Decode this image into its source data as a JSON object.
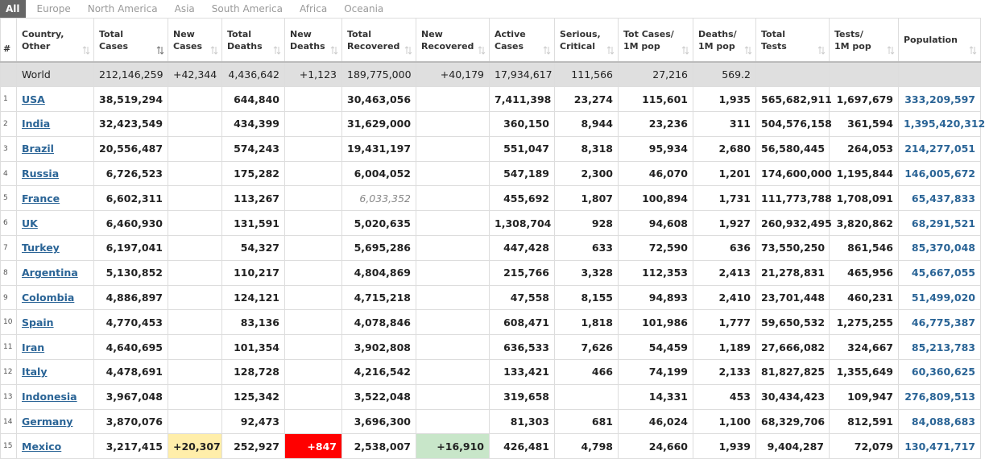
{
  "tabs": [
    "All",
    "Europe",
    "North America",
    "Asia",
    "South America",
    "Africa",
    "Oceania"
  ],
  "table": {
    "headers": [
      [
        "#"
      ],
      [
        "Country,",
        "Other"
      ],
      [
        "Total",
        "Cases"
      ],
      [
        "New",
        "Cases"
      ],
      [
        "Total",
        "Deaths"
      ],
      [
        "New",
        "Deaths"
      ],
      [
        "Total",
        "Recovered"
      ],
      [
        "New",
        "Recovered"
      ],
      [
        "Active",
        "Cases"
      ],
      [
        "Serious,",
        "Critical"
      ],
      [
        "Tot Cases/",
        "1M pop"
      ],
      [
        "Deaths/",
        "1M pop"
      ],
      [
        "Total",
        "Tests"
      ],
      [
        "Tests/",
        "1M pop"
      ],
      [
        "Population"
      ]
    ],
    "world": [
      null,
      "World",
      "212,146,259",
      "+42,344",
      "4,436,642",
      "+1,123",
      "189,775,000",
      "+40,179",
      "17,934,617",
      "111,566",
      "27,216",
      "569.2",
      null,
      null,
      null
    ],
    "rows": [
      [
        "1",
        "USA",
        "38,519,294",
        null,
        "644,840",
        null,
        "30,463,056",
        null,
        "7,411,398",
        "23,274",
        "115,601",
        "1,935",
        "565,682,911",
        "1,697,679",
        "333,209,597"
      ],
      [
        "2",
        "India",
        "32,423,549",
        null,
        "434,399",
        null,
        "31,629,000",
        null,
        "360,150",
        "8,944",
        "23,236",
        "311",
        "504,576,158",
        "361,594",
        "1,395,420,312"
      ],
      [
        "3",
        "Brazil",
        "20,556,487",
        null,
        "574,243",
        null,
        "19,431,197",
        null,
        "551,047",
        "8,318",
        "95,934",
        "2,680",
        "56,580,445",
        "264,053",
        "214,277,051"
      ],
      [
        "4",
        "Russia",
        "6,726,523",
        null,
        "175,282",
        null,
        "6,004,052",
        null,
        "547,189",
        "2,300",
        "46,070",
        "1,201",
        "174,600,000",
        "1,195,844",
        "146,005,672"
      ],
      [
        "5",
        "France",
        "6,602,311",
        null,
        "113,267",
        null,
        "6,033,352",
        null,
        "455,692",
        "1,807",
        "100,894",
        "1,731",
        "111,773,788",
        "1,708,091",
        "65,437,833"
      ],
      [
        "6",
        "UK",
        "6,460,930",
        null,
        "131,591",
        null,
        "5,020,635",
        null,
        "1,308,704",
        "928",
        "94,608",
        "1,927",
        "260,932,495",
        "3,820,862",
        "68,291,521"
      ],
      [
        "7",
        "Turkey",
        "6,197,041",
        null,
        "54,327",
        null,
        "5,695,286",
        null,
        "447,428",
        "633",
        "72,590",
        "636",
        "73,550,250",
        "861,546",
        "85,370,048"
      ],
      [
        "8",
        "Argentina",
        "5,130,852",
        null,
        "110,217",
        null,
        "4,804,869",
        null,
        "215,766",
        "3,328",
        "112,353",
        "2,413",
        "21,278,831",
        "465,956",
        "45,667,055"
      ],
      [
        "9",
        "Colombia",
        "4,886,897",
        null,
        "124,121",
        null,
        "4,715,218",
        null,
        "47,558",
        "8,155",
        "94,893",
        "2,410",
        "23,701,448",
        "460,231",
        "51,499,020"
      ],
      [
        "10",
        "Spain",
        "4,770,453",
        null,
        "83,136",
        null,
        "4,078,846",
        null,
        "608,471",
        "1,818",
        "101,986",
        "1,777",
        "59,650,532",
        "1,275,255",
        "46,775,387"
      ],
      [
        "11",
        "Iran",
        "4,640,695",
        null,
        "101,354",
        null,
        "3,902,808",
        null,
        "636,533",
        "7,626",
        "54,459",
        "1,189",
        "27,666,082",
        "324,667",
        "85,213,783"
      ],
      [
        "12",
        "Italy",
        "4,478,691",
        null,
        "128,728",
        null,
        "4,216,542",
        null,
        "133,421",
        "466",
        "74,199",
        "2,133",
        "81,827,825",
        "1,355,649",
        "60,360,625"
      ],
      [
        "13",
        "Indonesia",
        "3,967,048",
        null,
        "125,342",
        null,
        "3,522,048",
        null,
        "319,658",
        null,
        "14,331",
        "453",
        "30,434,423",
        "109,947",
        "276,809,513"
      ],
      [
        "14",
        "Germany",
        "3,870,076",
        null,
        "92,473",
        null,
        "3,696,300",
        null,
        "81,303",
        "681",
        "46,024",
        "1,100",
        "68,329,706",
        "812,591",
        "84,088,683"
      ],
      [
        "15",
        "Mexico",
        "3,217,415",
        "+20,307",
        "252,927",
        "+847",
        "2,538,007",
        "+16,910",
        "426,481",
        "4,798",
        "24,660",
        "1,939",
        "9,404,287",
        "72,079",
        "130,471,717"
      ]
    ]
  }
}
